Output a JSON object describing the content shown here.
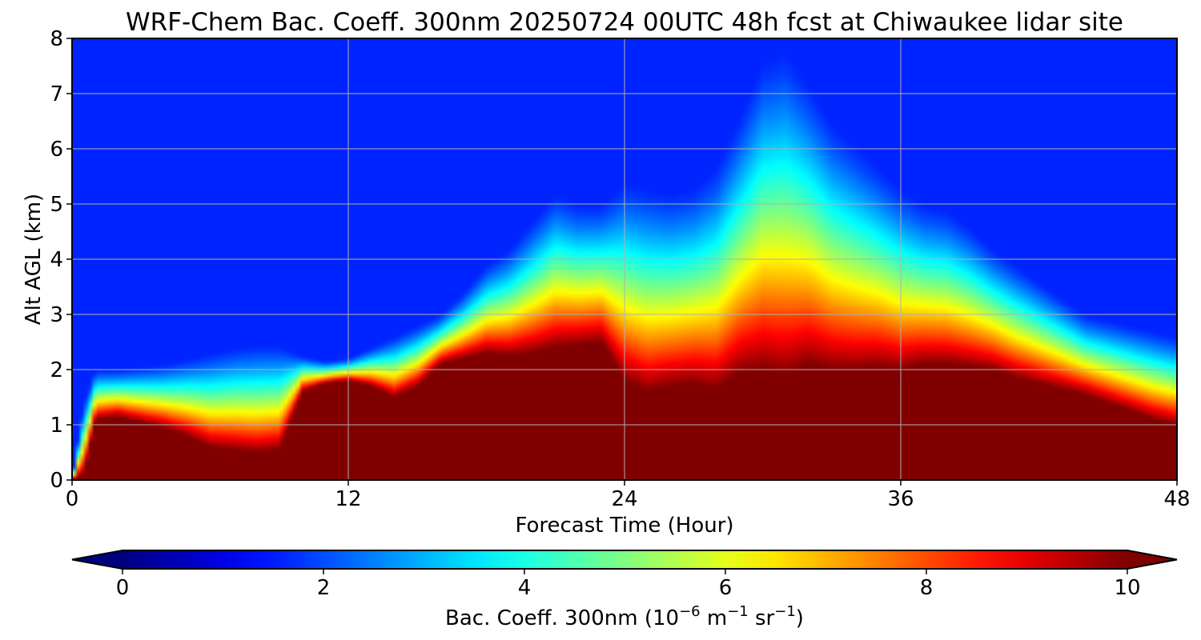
{
  "chart_data": {
    "type": "heatmap",
    "title": "WRF-Chem Bac. Coeff. 300nm  20250724 00UTC 48h fcst at Chiwaukee lidar site",
    "xlabel": "Forecast Time (Hour)",
    "ylabel": "Alt AGL (km)",
    "xlim": [
      0,
      48
    ],
    "ylim": [
      0,
      8
    ],
    "xticks": [
      "0",
      "12",
      "24",
      "36",
      "48"
    ],
    "yticks": [
      "0",
      "1",
      "2",
      "3",
      "4",
      "5",
      "6",
      "7",
      "8"
    ],
    "grid": true,
    "colormap": "jet",
    "colorbar": {
      "label_prefix": "Bac. Coeff. 300nm  (10",
      "label_exp1": "−6",
      "label_mid": " m",
      "label_exp2": "−1",
      "label_mid2": " sr",
      "label_exp3": "−1",
      "label_suffix": ")",
      "vmin": 0,
      "vmax": 10,
      "ticks": [
        "0",
        "2",
        "4",
        "6",
        "8",
        "10"
      ],
      "extend": "both",
      "orientation": "horizontal"
    },
    "time_hours": [
      0,
      0.5,
      1,
      2,
      3,
      4,
      5,
      6,
      7,
      8,
      9,
      10,
      11,
      12,
      13,
      14,
      15,
      16,
      17,
      18,
      19,
      20,
      21,
      22,
      23,
      24,
      25,
      26,
      27,
      28,
      29,
      30,
      31,
      32,
      33,
      34,
      35,
      36,
      37,
      38,
      39,
      40,
      41,
      42,
      43,
      44,
      45,
      46,
      47,
      48
    ],
    "saturated_layer_top_km": [
      0.0,
      0.1,
      1.1,
      1.15,
      1.05,
      0.95,
      0.8,
      0.6,
      0.55,
      0.5,
      0.55,
      1.6,
      1.75,
      1.8,
      1.7,
      1.5,
      1.7,
      2.1,
      2.2,
      2.3,
      2.25,
      2.3,
      2.4,
      2.45,
      2.5,
      1.8,
      1.6,
      1.7,
      1.75,
      1.65,
      1.95,
      2.0,
      1.9,
      2.1,
      2.0,
      2.0,
      2.05,
      2.0,
      2.1,
      2.1,
      2.05,
      2.0,
      1.85,
      1.75,
      1.65,
      1.55,
      1.4,
      1.25,
      1.1,
      1.0
    ],
    "aerosol_top_km": [
      0.0,
      1.4,
      2.0,
      2.0,
      2.05,
      2.1,
      2.2,
      2.3,
      2.4,
      2.45,
      2.45,
      2.25,
      2.15,
      2.2,
      2.4,
      2.6,
      2.8,
      3.0,
      3.4,
      3.9,
      4.2,
      4.7,
      5.2,
      5.0,
      5.0,
      5.4,
      5.3,
      5.2,
      5.3,
      5.7,
      6.6,
      7.6,
      7.8,
      7.2,
      6.5,
      6.1,
      5.7,
      5.3,
      5.0,
      4.9,
      4.6,
      4.2,
      3.9,
      3.6,
      3.3,
      3.0,
      2.9,
      2.8,
      2.7,
      2.6
    ],
    "background_level": 1.6
  }
}
